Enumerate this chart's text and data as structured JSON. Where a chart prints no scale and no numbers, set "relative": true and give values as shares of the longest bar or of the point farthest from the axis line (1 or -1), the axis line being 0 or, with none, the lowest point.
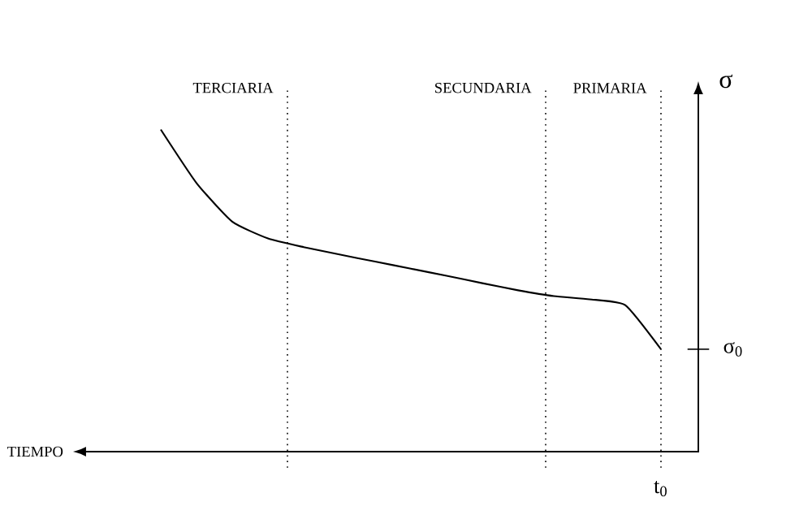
{
  "chart_data": {
    "type": "line",
    "relative": true,
    "ylabel": "σ",
    "categories": [
      null,
      null,
      null,
      null,
      null,
      null,
      null,
      null,
      null,
      null,
      null,
      null,
      null,
      null,
      null
    ],
    "values": [
      1.0,
      0.834,
      0.714,
      0.662,
      0.635,
      0.612,
      0.59,
      0.568,
      0.546,
      0.523,
      0.501,
      0.483,
      0.473,
      0.455,
      0.318
    ],
    "color": "#000000",
    "marker": "none",
    "line_style": "solid",
    "annotations": [
      "PRIMARIA",
      "SECUNDARIA",
      "TERCIARIA",
      "σ$_{0}$",
      "t$_{0}$",
      "TIEMPO"
    ]
  }
}
